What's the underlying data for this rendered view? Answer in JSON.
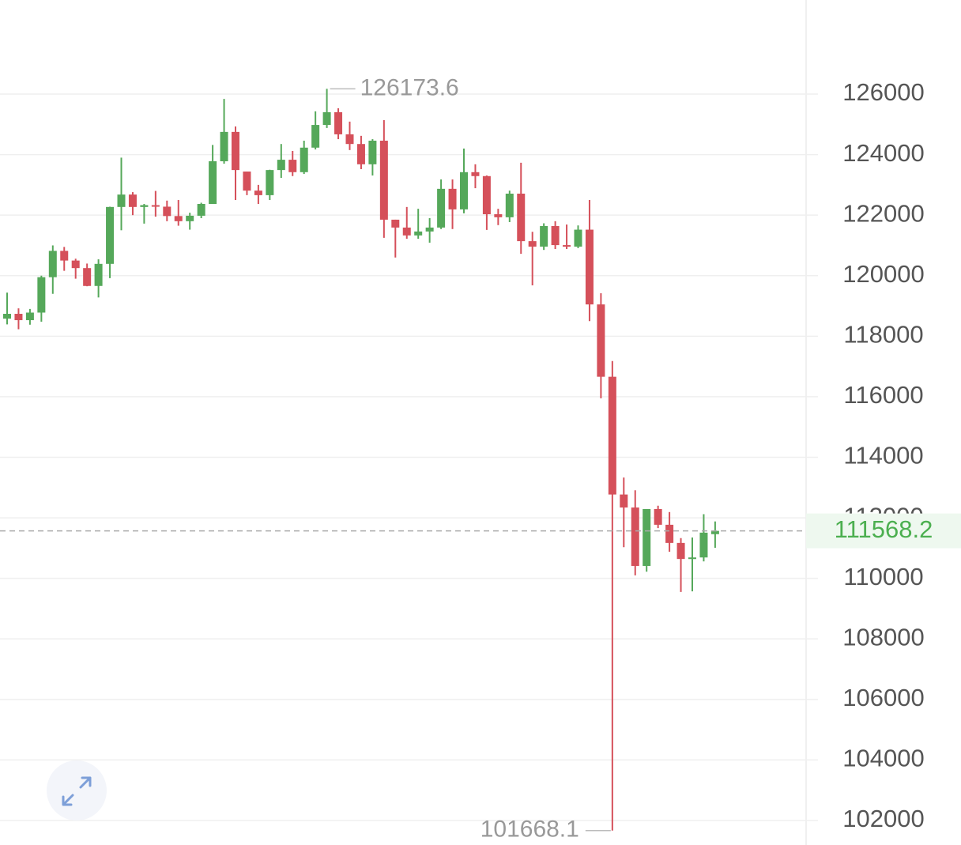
{
  "chart_data": {
    "type": "candlestick",
    "open": [
      118580,
      118740,
      118530,
      118780,
      119950,
      120820,
      120500,
      120250,
      119660,
      120390,
      122270,
      122680,
      122270,
      122330,
      122280,
      121970,
      121800,
      121980,
      122370,
      123780,
      124750,
      123440,
      122810,
      122660,
      123490,
      123830,
      123420,
      124230,
      124980,
      125400,
      124670,
      124350,
      123680,
      124460,
      121850,
      121590,
      121330,
      121460,
      121590,
      122870,
      122190,
      123420,
      123290,
      122030,
      121930,
      122710,
      121140,
      120960,
      121640,
      121010,
      120960,
      121520,
      119050,
      116660,
      112770,
      112340,
      110410,
      112290,
      111770,
      111170,
      110640,
      110690,
      111460
    ],
    "high": [
      119440,
      118920,
      118900,
      120000,
      121000,
      120950,
      120560,
      120400,
      120540,
      122280,
      123900,
      122760,
      122370,
      122800,
      122480,
      122500,
      122080,
      122410,
      124320,
      125840,
      124930,
      123440,
      123000,
      123500,
      124350,
      124120,
      124460,
      125430,
      126173.6,
      125530,
      125090,
      124620,
      124510,
      125140,
      121850,
      122270,
      122210,
      121900,
      123180,
      123180,
      124200,
      123680,
      123310,
      122210,
      122810,
      123730,
      121450,
      121730,
      121800,
      121690,
      121660,
      122500,
      119420,
      117180,
      113330,
      112910,
      112290,
      112400,
      112190,
      111330,
      111350,
      112120,
      111880
    ],
    "low": [
      118390,
      118230,
      118380,
      118480,
      119400,
      120160,
      119900,
      119650,
      119280,
      119920,
      121500,
      122000,
      121720,
      121950,
      121800,
      121650,
      121520,
      121900,
      122370,
      123700,
      122500,
      122660,
      122370,
      122500,
      123230,
      123290,
      123360,
      124170,
      124880,
      124510,
      124150,
      123520,
      123310,
      121250,
      120600,
      121220,
      121220,
      121090,
      121540,
      121540,
      122060,
      122890,
      121510,
      121670,
      121770,
      120720,
      119680,
      120850,
      120880,
      120880,
      120910,
      118500,
      115950,
      101668.1,
      111030,
      110100,
      110220,
      111660,
      110880,
      109550,
      109570,
      110560,
      111010
    ],
    "close": [
      118740,
      118530,
      118780,
      119950,
      120820,
      120500,
      120250,
      119660,
      120390,
      122270,
      122680,
      122270,
      122330,
      122280,
      121970,
      121800,
      121980,
      122370,
      123780,
      124750,
      123490,
      122810,
      122660,
      123490,
      123830,
      123420,
      124230,
      124980,
      125400,
      124670,
      124350,
      123680,
      124460,
      121850,
      121590,
      121330,
      121460,
      121590,
      122870,
      122190,
      123420,
      123290,
      122030,
      121930,
      122710,
      121140,
      120960,
      121640,
      121010,
      120960,
      121520,
      119050,
      116660,
      112770,
      112340,
      110410,
      112290,
      111770,
      111170,
      110640,
      110690,
      111510,
      111568.2
    ],
    "up_color": "#55a85a",
    "down_color": "#d5505a",
    "ylim": [
      101190,
      129108
    ],
    "yticks": [
      102000,
      104000,
      106000,
      108000,
      110000,
      112000,
      114000,
      116000,
      118000,
      120000,
      122000,
      124000,
      126000
    ],
    "grid": true
  }
}
